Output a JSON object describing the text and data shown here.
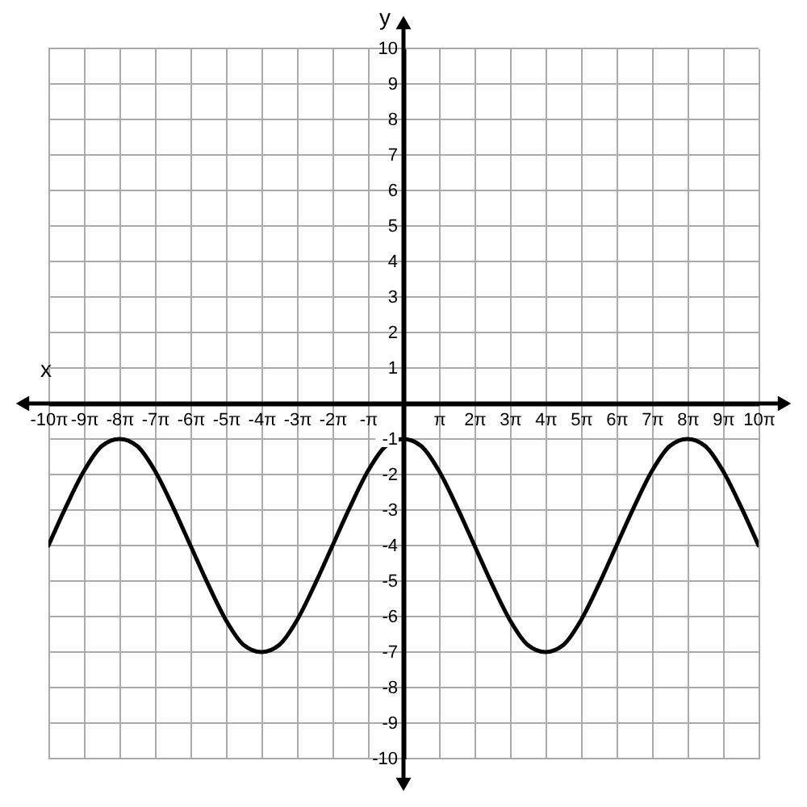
{
  "chart_data": {
    "type": "line",
    "xlabel": "x",
    "ylabel": "y",
    "x": [
      -31.42,
      -29.85,
      -28.27,
      -26.7,
      -25.13,
      -23.56,
      -21.99,
      -20.42,
      -18.85,
      -17.28,
      -15.71,
      -14.14,
      -12.57,
      -11.0,
      -9.42,
      -7.85,
      -6.28,
      -4.71,
      -3.14,
      -1.57,
      0,
      1.57,
      3.14,
      4.71,
      6.28,
      7.85,
      9.42,
      11.0,
      12.57,
      14.14,
      15.71,
      17.28,
      18.85,
      20.42,
      21.99,
      23.56,
      25.13,
      26.7,
      28.27,
      29.85,
      31.42
    ],
    "series": [
      {
        "color": "#000000",
        "values": [
          -4,
          -2.9,
          -1.9,
          -1.2,
          -1,
          -1.2,
          -1.9,
          -2.9,
          -4,
          -5.1,
          -6.1,
          -6.8,
          -7,
          -6.8,
          -6.1,
          -5.1,
          -4,
          -2.9,
          -1.9,
          -1.2,
          -1,
          -1.2,
          -1.9,
          -2.9,
          -4,
          -5.1,
          -6.1,
          -6.8,
          -7,
          -6.8,
          -6.1,
          -5.1,
          -4,
          -2.9,
          -1.9,
          -1.2,
          -1,
          -1.2,
          -1.9,
          -2.9,
          -4
        ]
      }
    ],
    "xlim": [
      -31.42,
      31.42
    ],
    "ylim": [
      -10,
      10
    ],
    "xticks": [
      {
        "value": -31.42,
        "label": "-10π"
      },
      {
        "value": -28.27,
        "label": "-9π"
      },
      {
        "value": -25.13,
        "label": "-8π"
      },
      {
        "value": -21.99,
        "label": "-7π"
      },
      {
        "value": -18.85,
        "label": "-6π"
      },
      {
        "value": -15.71,
        "label": "-5π"
      },
      {
        "value": -12.57,
        "label": "-4π"
      },
      {
        "value": -9.42,
        "label": "-3π"
      },
      {
        "value": -6.28,
        "label": "-2π"
      },
      {
        "value": -3.14,
        "label": "-π"
      },
      {
        "value": 3.14,
        "label": "π"
      },
      {
        "value": 6.28,
        "label": "2π"
      },
      {
        "value": 9.42,
        "label": "3π"
      },
      {
        "value": 12.57,
        "label": "4π"
      },
      {
        "value": 15.71,
        "label": "5π"
      },
      {
        "value": 18.85,
        "label": "6π"
      },
      {
        "value": 21.99,
        "label": "7π"
      },
      {
        "value": 25.13,
        "label": "8π"
      },
      {
        "value": 28.27,
        "label": "9π"
      },
      {
        "value": 31.42,
        "label": "10π"
      }
    ],
    "yticks": [
      -10,
      -9,
      -8,
      -7,
      -6,
      -5,
      -4,
      -3,
      -2,
      -1,
      1,
      2,
      3,
      4,
      5,
      6,
      7,
      8,
      9,
      10
    ],
    "grid": true,
    "line_style": "solid"
  }
}
